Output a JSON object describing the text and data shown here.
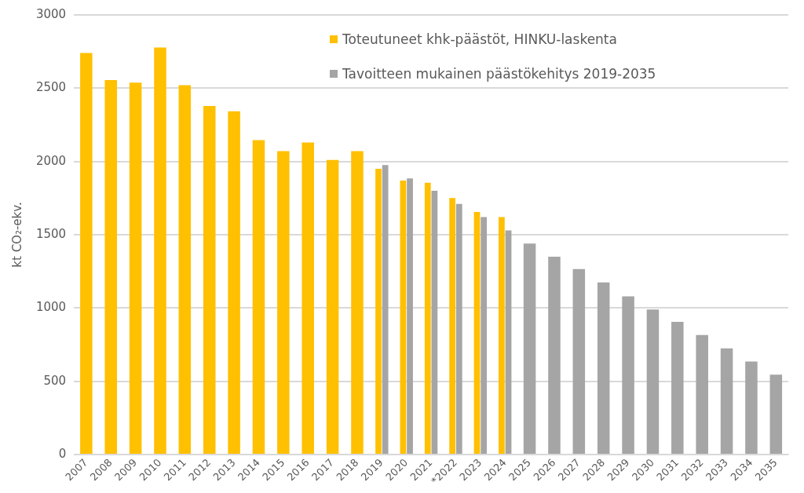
{
  "chart_data": {
    "type": "bar",
    "ylabel": "kt CO₂-ekv.",
    "categories": [
      "2007",
      "2008",
      "2009",
      "2010",
      "2011",
      "2012",
      "2013",
      "2014",
      "2015",
      "2016",
      "2017",
      "2018",
      "2019",
      "2020",
      "2021",
      "*2022",
      "2023",
      "2024",
      "2025",
      "2026",
      "2027",
      "2028",
      "2029",
      "2030",
      "2031",
      "2032",
      "2033",
      "2034",
      "2035"
    ],
    "series": [
      {
        "name": "Toteutuneet khk-päästöt, HINKU-laskenta",
        "color": "#ffc000",
        "values": [
          2740,
          2555,
          2538,
          2778,
          2520,
          2378,
          2343,
          2145,
          2070,
          2130,
          2010,
          2070,
          1950,
          1870,
          1855,
          1750,
          1655,
          1620,
          null,
          null,
          null,
          null,
          null,
          null,
          null,
          null,
          null,
          null,
          null
        ]
      },
      {
        "name": "Tavoitteen mukainen päästökehitys 2019-2035",
        "color": "#a5a5a5",
        "values": [
          null,
          null,
          null,
          null,
          null,
          null,
          null,
          null,
          null,
          null,
          null,
          null,
          1975,
          1885,
          1800,
          1710,
          1620,
          1530,
          1440,
          1350,
          1265,
          1175,
          1080,
          990,
          905,
          815,
          725,
          635,
          545
        ]
      }
    ],
    "ylim": [
      0,
      3000
    ],
    "yticks": [
      0,
      500,
      1000,
      1500,
      2000,
      2500,
      3000
    ],
    "grid": "y",
    "legend": "top right"
  }
}
